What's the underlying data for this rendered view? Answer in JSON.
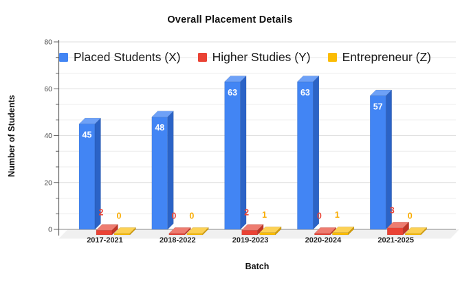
{
  "chart_data": {
    "type": "bar",
    "variant": "3d-column",
    "title": "Overall Placement Details",
    "xlabel": "Batch",
    "ylabel": "Number of Students",
    "categories": [
      "2017-2021",
      "2018-2022",
      "2019-2023",
      "2020-2024",
      "2021-2025"
    ],
    "series": [
      {
        "name": "Placed Students (X)",
        "values": [
          45,
          48,
          63,
          63,
          57
        ],
        "color": "#4285F4",
        "color_top": "#6EA1F7",
        "color_side": "#2B63C6",
        "value_label_color": "#FFFFFF"
      },
      {
        "name": "Higher Studies (Y)",
        "values": [
          2,
          0,
          2,
          0,
          3
        ],
        "color": "#EA4335",
        "color_top": "#EE7C70",
        "color_side": "#C13425",
        "value_label_color": "#EA4335"
      },
      {
        "name": "Entrepreneur (Z)",
        "values": [
          0,
          0,
          1,
          1,
          0
        ],
        "color": "#FBBC04",
        "color_top": "#FCD155",
        "color_side": "#D49C02",
        "value_label_color": "#F9AB00"
      }
    ],
    "ylim": [
      0,
      80
    ],
    "yticks": [
      0,
      20,
      40,
      60,
      80
    ],
    "minor_ticks_per_major": 2,
    "grid": true,
    "legend_position": "top-left-inside",
    "axis_color": "#616161",
    "grid_minor_color": "#ECECEC",
    "grid_major_color": "#DEDEDE",
    "zero_line_color": "#9E9E9E",
    "floor_color": "#F0F0F0",
    "tick_label_color": "#444444",
    "category_label_color": "#1F1F1F"
  }
}
